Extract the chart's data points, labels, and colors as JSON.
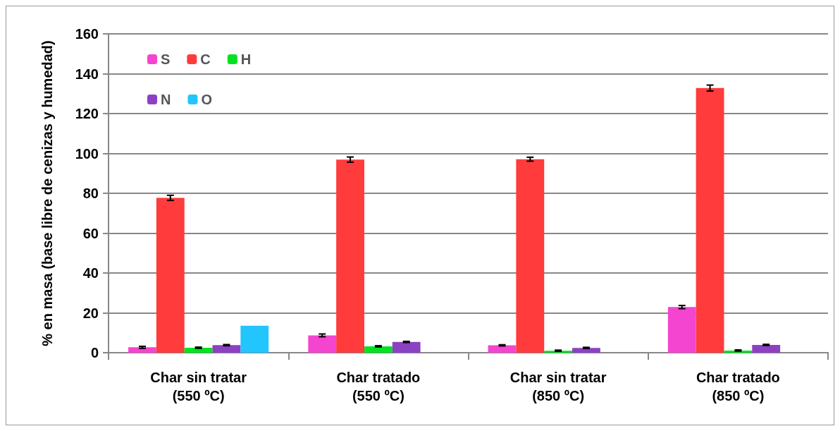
{
  "chart_data": {
    "type": "bar",
    "ylabel": "% en masa (base libre de cenizas y humedad)",
    "categories": [
      "Char sin tratar\n(550 ºC)",
      "Char tratado\n(550 ºC)",
      "Char sin tratar\n(850 ºC)",
      "Char tratado\n(850 ºC)"
    ],
    "series": [
      {
        "name": "S",
        "color": "#f445d0",
        "values": [
          2.7,
          8.7,
          3.7,
          22.9
        ],
        "errors": [
          0.5,
          0.7,
          0.3,
          0.8
        ]
      },
      {
        "name": "C",
        "color": "#ff3b3b",
        "values": [
          77.7,
          96.9,
          97.1,
          132.8
        ],
        "errors": [
          1.3,
          1.3,
          1,
          1.5
        ]
      },
      {
        "name": "H",
        "color": "#00e31e",
        "values": [
          2.5,
          3.2,
          1.0,
          1.1
        ],
        "errors": [
          0.3,
          0.3,
          0.3,
          0.3
        ]
      },
      {
        "name": "N",
        "color": "#8c41c3",
        "values": [
          3.8,
          5.4,
          2.4,
          3.9
        ],
        "errors": [
          0.3,
          0.3,
          0.3,
          0.3
        ]
      },
      {
        "name": "O",
        "color": "#22c5fe",
        "values": [
          13.5,
          null,
          null,
          null
        ]
      }
    ],
    "ylim": [
      0,
      160
    ],
    "yticks": [
      0,
      20,
      40,
      60,
      80,
      100,
      120,
      140,
      160
    ],
    "grid": "y",
    "legend": "top left"
  }
}
